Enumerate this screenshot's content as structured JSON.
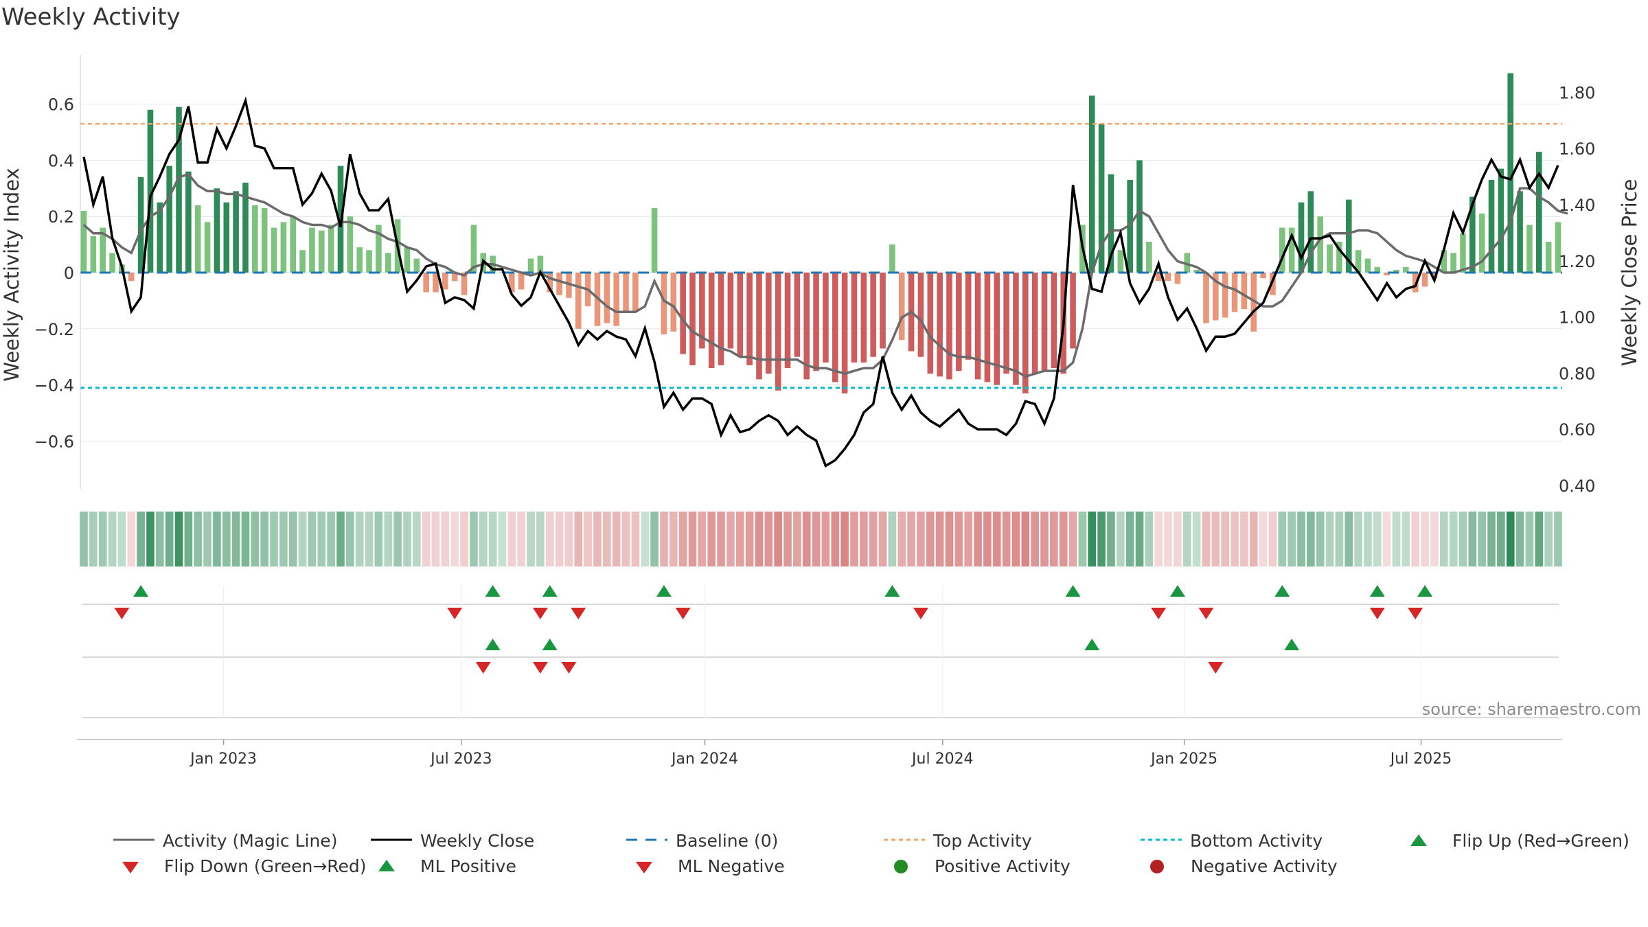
{
  "page": {
    "title": "Weekly Activity",
    "source": "source: sharemaestro.com"
  },
  "chart_data": {
    "type": "bar",
    "title": "Weekly Activity",
    "y_left": {
      "label": "Weekly Activity Index",
      "range": [
        -0.78,
        0.78
      ],
      "ticks": [
        0.6,
        0.4,
        0.2,
        0,
        -0.2,
        -0.4,
        -0.6
      ],
      "tick_labels": [
        "0.6",
        "0.4",
        "0.2",
        "0",
        "−0.2",
        "−0.4",
        "−0.6"
      ]
    },
    "y_right": {
      "label": "Weekly Close Price",
      "range": [
        0.4,
        1.9
      ],
      "ticks": [
        1.8,
        1.6,
        1.4,
        1.2,
        1.0,
        0.8,
        0.6,
        0.4
      ],
      "tick_labels": [
        "1.80",
        "1.60",
        "1.40",
        "1.20",
        "1.00",
        "0.80",
        "0.60",
        "0.40"
      ]
    },
    "x_axis": {
      "start_week": 0,
      "end_week": 151,
      "ticks": [
        14.7,
        39.7,
        65.3,
        90.3,
        115.7,
        140.6
      ],
      "tick_labels": [
        "Jan 2023",
        "Jul 2023",
        "Jan 2024",
        "Jul 2024",
        "Jan 2025",
        "Jul 2025"
      ]
    },
    "reference_lines": {
      "baseline": 0,
      "top_activity": 0.53,
      "bottom_activity": -0.41
    },
    "activity": [
      0.22,
      0.13,
      0.16,
      0.07,
      0.03,
      -0.03,
      0.34,
      0.58,
      0.25,
      0.38,
      0.59,
      0.36,
      0.24,
      0.18,
      0.3,
      0.25,
      0.29,
      0.32,
      0.24,
      0.23,
      0.16,
      0.18,
      0.2,
      0.08,
      0.16,
      0.15,
      0.17,
      0.38,
      0.2,
      0.09,
      0.08,
      0.17,
      0.07,
      0.19,
      0.09,
      0.05,
      -0.07,
      -0.07,
      -0.06,
      -0.03,
      -0.08,
      0.17,
      0.07,
      0.06,
      0.0,
      -0.07,
      -0.06,
      0.05,
      0.06,
      -0.07,
      -0.08,
      -0.09,
      -0.2,
      -0.12,
      -0.19,
      -0.18,
      -0.19,
      -0.14,
      -0.14,
      0.0,
      0.23,
      -0.22,
      -0.21,
      -0.29,
      -0.33,
      -0.27,
      -0.34,
      -0.33,
      -0.27,
      -0.3,
      -0.33,
      -0.38,
      -0.36,
      -0.42,
      -0.34,
      -0.3,
      -0.38,
      -0.35,
      -0.32,
      -0.39,
      -0.43,
      -0.32,
      -0.32,
      -0.3,
      -0.27,
      0.1,
      -0.24,
      -0.28,
      -0.3,
      -0.36,
      -0.37,
      -0.38,
      -0.35,
      -0.31,
      -0.38,
      -0.39,
      -0.4,
      -0.36,
      -0.4,
      -0.43,
      -0.36,
      -0.35,
      -0.34,
      -0.36,
      -0.27,
      0.17,
      0.63,
      0.53,
      0.35,
      0.08,
      0.33,
      0.4,
      0.11,
      -0.03,
      -0.03,
      -0.04,
      0.07,
      0.01,
      -0.18,
      -0.17,
      -0.16,
      -0.14,
      -0.13,
      -0.21,
      -0.02,
      -0.08,
      0.16,
      0.16,
      0.25,
      0.29,
      0.2,
      0.1,
      0.11,
      0.26,
      0.08,
      0.05,
      0.02,
      -0.01,
      0.01,
      0.02,
      -0.07,
      -0.05,
      -0.02,
      0.08,
      0.07,
      0.14,
      0.27,
      0.21,
      0.33,
      0.37,
      0.71,
      0.29,
      0.17,
      0.43,
      0.11,
      0.18
    ],
    "magic_line": [
      0.17,
      0.14,
      0.14,
      0.12,
      0.09,
      0.07,
      0.15,
      0.2,
      0.22,
      0.27,
      0.34,
      0.35,
      0.31,
      0.29,
      0.29,
      0.28,
      0.28,
      0.27,
      0.26,
      0.25,
      0.23,
      0.21,
      0.2,
      0.18,
      0.17,
      0.17,
      0.16,
      0.18,
      0.18,
      0.17,
      0.15,
      0.14,
      0.12,
      0.11,
      0.09,
      0.08,
      0.05,
      0.03,
      0.02,
      0.0,
      -0.01,
      0.02,
      0.03,
      0.03,
      0.02,
      0.01,
      0.0,
      -0.01,
      0.0,
      -0.02,
      -0.03,
      -0.04,
      -0.05,
      -0.06,
      -0.09,
      -0.12,
      -0.14,
      -0.14,
      -0.14,
      -0.12,
      -0.03,
      -0.1,
      -0.12,
      -0.17,
      -0.21,
      -0.23,
      -0.25,
      -0.27,
      -0.28,
      -0.3,
      -0.3,
      -0.31,
      -0.31,
      -0.31,
      -0.31,
      -0.31,
      -0.33,
      -0.34,
      -0.34,
      -0.35,
      -0.36,
      -0.35,
      -0.34,
      -0.34,
      -0.31,
      -0.24,
      -0.16,
      -0.14,
      -0.17,
      -0.23,
      -0.26,
      -0.29,
      -0.3,
      -0.3,
      -0.31,
      -0.32,
      -0.33,
      -0.34,
      -0.35,
      -0.37,
      -0.36,
      -0.35,
      -0.35,
      -0.35,
      -0.32,
      -0.2,
      0.0,
      0.1,
      0.15,
      0.15,
      0.17,
      0.22,
      0.2,
      0.14,
      0.08,
      0.04,
      0.03,
      0.02,
      0.0,
      -0.03,
      -0.05,
      -0.06,
      -0.08,
      -0.1,
      -0.12,
      -0.12,
      -0.1,
      -0.05,
      0.0,
      0.07,
      0.12,
      0.14,
      0.14,
      0.14,
      0.15,
      0.15,
      0.14,
      0.11,
      0.08,
      0.06,
      0.05,
      0.04,
      0.02,
      0.0,
      0.0,
      0.01,
      0.02,
      0.04,
      0.08,
      0.12,
      0.18,
      0.3,
      0.3,
      0.27,
      0.25,
      0.22,
      0.21
    ],
    "close": [
      1.57,
      1.4,
      1.5,
      1.28,
      1.18,
      1.02,
      1.07,
      1.43,
      1.5,
      1.58,
      1.63,
      1.75,
      1.55,
      1.55,
      1.67,
      1.6,
      1.68,
      1.77,
      1.61,
      1.6,
      1.53,
      1.53,
      1.53,
      1.4,
      1.44,
      1.51,
      1.45,
      1.32,
      1.58,
      1.44,
      1.38,
      1.38,
      1.42,
      1.25,
      1.09,
      1.13,
      1.18,
      1.19,
      1.05,
      1.07,
      1.06,
      1.03,
      1.2,
      1.17,
      1.17,
      1.08,
      1.04,
      1.07,
      1.16,
      1.1,
      1.04,
      0.98,
      0.9,
      0.95,
      0.92,
      0.95,
      0.93,
      0.92,
      0.86,
      0.96,
      0.84,
      0.68,
      0.73,
      0.67,
      0.71,
      0.71,
      0.69,
      0.58,
      0.65,
      0.59,
      0.6,
      0.63,
      0.65,
      0.63,
      0.58,
      0.61,
      0.58,
      0.56,
      0.47,
      0.49,
      0.53,
      0.58,
      0.66,
      0.69,
      0.86,
      0.73,
      0.67,
      0.72,
      0.66,
      0.63,
      0.61,
      0.64,
      0.67,
      0.62,
      0.6,
      0.6,
      0.6,
      0.58,
      0.62,
      0.7,
      0.69,
      0.62,
      0.71,
      0.97,
      1.47,
      1.25,
      1.1,
      1.09,
      1.22,
      1.3,
      1.12,
      1.05,
      1.1,
      1.19,
      1.07,
      0.99,
      1.03,
      0.96,
      0.88,
      0.93,
      0.93,
      0.94,
      0.98,
      1.02,
      1.05,
      1.13,
      1.21,
      1.29,
      1.21,
      1.28,
      1.28,
      1.29,
      1.24,
      1.2,
      1.16,
      1.11,
      1.06,
      1.12,
      1.07,
      1.1,
      1.11,
      1.2,
      1.13,
      1.24,
      1.37,
      1.3,
      1.4,
      1.49,
      1.56,
      1.5,
      1.49,
      1.56,
      1.46,
      1.51,
      1.46,
      1.54
    ],
    "flip_up_weeks": [
      6,
      43,
      49,
      61,
      85,
      104,
      115,
      126,
      136,
      141
    ],
    "flip_down_weeks": [
      4,
      39,
      48,
      52,
      63,
      88,
      113,
      118,
      136,
      140
    ],
    "ml_positive_weeks": [
      43,
      49,
      106,
      127
    ],
    "ml_negative_weeks": [
      42,
      48,
      51,
      119
    ],
    "legend": {
      "items": [
        "Activity (Magic Line)",
        "Weekly Close",
        "Baseline (0)",
        "Top Activity",
        "Bottom Activity",
        "Flip Up (Red→Green)",
        "Flip Down (Green→Red)",
        "ML Positive",
        "ML Negative",
        "Positive Activity",
        "Negative Activity"
      ]
    },
    "colors": {
      "pos_strong": "#2e8b57",
      "pos_light": "#7dc27d",
      "neg_strong": "#cd5c5c",
      "neg_light": "#e9967a",
      "magic_line": "#6b6b6b",
      "close": "#000000",
      "baseline": "#1f77b4",
      "top": "#f4a460",
      "bottom": "#00bcd4",
      "flip_up": "#1a9641",
      "flip_down": "#d62728",
      "grid": "#e6e6e6",
      "axis_text": "#333333",
      "source": "#8c8c8c",
      "positive_dot": "#228b22",
      "negative_dot": "#b22222"
    }
  }
}
